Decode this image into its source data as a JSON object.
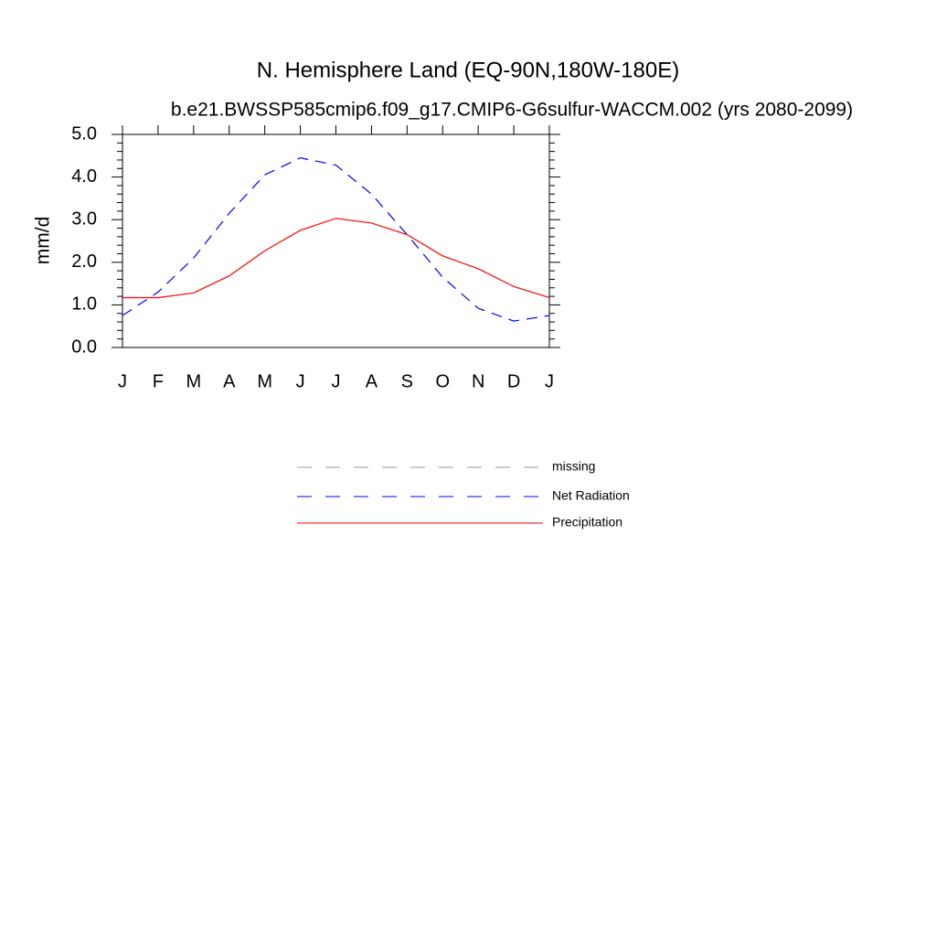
{
  "chart_data": {
    "type": "line",
    "title": "N. Hemisphere Land (EQ-90N,180W-180E)",
    "subtitle": "b.e21.BWSSP585cmip6.f09_g17.CMIP6-G6sulfur-WACCM.002 (yrs 2080-2099)",
    "y_label": "mm/d",
    "categories": [
      "J",
      "F",
      "M",
      "A",
      "M",
      "J",
      "J",
      "A",
      "S",
      "O",
      "N",
      "D",
      "J"
    ],
    "series": [
      {
        "name": "missing",
        "color": "#999999",
        "dash": true,
        "values": [
          null,
          null,
          null,
          null,
          null,
          null,
          null,
          null,
          null,
          null,
          null,
          null,
          null
        ]
      },
      {
        "name": "Net Radiation",
        "color": "#0000ff",
        "dash": true,
        "values": [
          0.75,
          1.3,
          2.1,
          3.15,
          4.05,
          4.45,
          4.28,
          3.6,
          2.65,
          1.65,
          0.92,
          0.62,
          0.75
        ]
      },
      {
        "name": "Precipitation",
        "color": "#ff0000",
        "dash": false,
        "values": [
          1.17,
          1.17,
          1.28,
          1.68,
          2.27,
          2.75,
          3.03,
          2.92,
          2.65,
          2.15,
          1.85,
          1.43,
          1.17
        ]
      }
    ],
    "ylim": [
      0,
      5
    ],
    "yticks": [
      {
        "value": 0,
        "label": "0.0"
      },
      {
        "value": 1,
        "label": "1.0"
      },
      {
        "value": 2,
        "label": "2.0"
      },
      {
        "value": 3,
        "label": "3.0"
      },
      {
        "value": 4,
        "label": "4.0"
      },
      {
        "value": 5,
        "label": "5.0"
      }
    ]
  }
}
